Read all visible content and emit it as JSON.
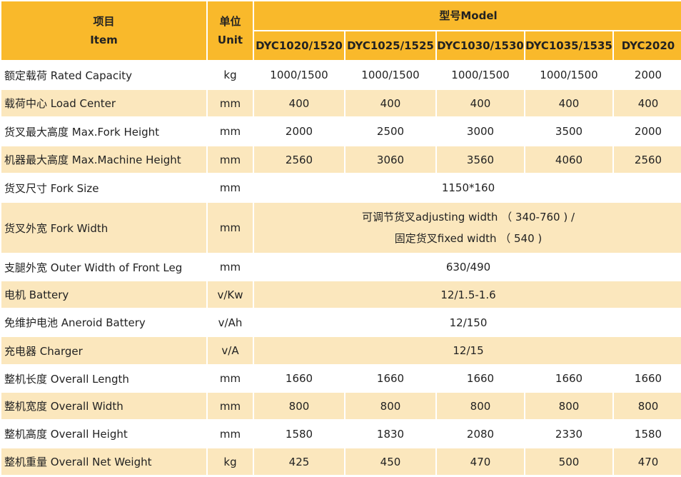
{
  "header": {
    "item_cn": "项目",
    "item_en": "Item",
    "unit_cn": "单位",
    "unit_en": "Unit",
    "model": "型号Model",
    "models": [
      "DYC1020/1520",
      "DYC1025/1525",
      "DYC1030/1530",
      "DYC1035/1535",
      "DYC2020"
    ]
  },
  "rows": [
    {
      "label": "额定载荷 Rated Capacity",
      "unit": "kg",
      "values": [
        "1000/1500",
        "1000/1500",
        "1000/1500",
        "1000/1500",
        "2000"
      ]
    },
    {
      "label": "载荷中心 Load Center",
      "unit": "mm",
      "values": [
        "400",
        "400",
        "400",
        "400",
        "400"
      ]
    },
    {
      "label": "货叉最大高度 Max.Fork Height",
      "unit": "mm",
      "values": [
        "2000",
        "2500",
        "3000",
        "3500",
        "2000"
      ]
    },
    {
      "label": "机器最大高度 Max.Machine Height",
      "unit": "mm",
      "values": [
        "2560",
        "3060",
        "3560",
        "4060",
        "2560"
      ]
    },
    {
      "label": "货叉尺寸 Fork Size",
      "unit": "mm",
      "merged": "1150*160"
    },
    {
      "label": "货叉外宽 Fork Width",
      "unit": "mm",
      "merged_line1": "可调节货叉adjusting width （ 340-760 ) /",
      "merged_line2": "固定货叉fixed width （ 540 )"
    },
    {
      "label": "支腿外宽 Outer Width of Front Leg",
      "unit": "mm",
      "merged": "630/490"
    },
    {
      "label": "电机 Battery",
      "unit": "v/Kw",
      "merged": "12/1.5-1.6"
    },
    {
      "label": "免维护电池 Aneroid Battery",
      "unit": "v/Ah",
      "merged": "12/150"
    },
    {
      "label": "充电器 Charger",
      "unit": "v/A",
      "merged": "12/15"
    },
    {
      "label": "整机长度 Overall Length",
      "unit": "mm",
      "values": [
        "1660",
        "1660",
        "1660",
        "1660",
        "1660"
      ]
    },
    {
      "label": "整机宽度 Overall Width",
      "unit": "mm",
      "values": [
        "800",
        "800",
        "800",
        "800",
        "800"
      ]
    },
    {
      "label": "整机高度 Overall Height",
      "unit": "mm",
      "values": [
        "1580",
        "1830",
        "2080",
        "2330",
        "1580"
      ]
    },
    {
      "label": "整机重量 Overall Net Weight",
      "unit": "kg",
      "values": [
        "425",
        "450",
        "470",
        "500",
        "470"
      ]
    }
  ],
  "colors": {
    "header": "#f9b92b",
    "stripe": "#fbe7bd",
    "text": "#222222"
  }
}
